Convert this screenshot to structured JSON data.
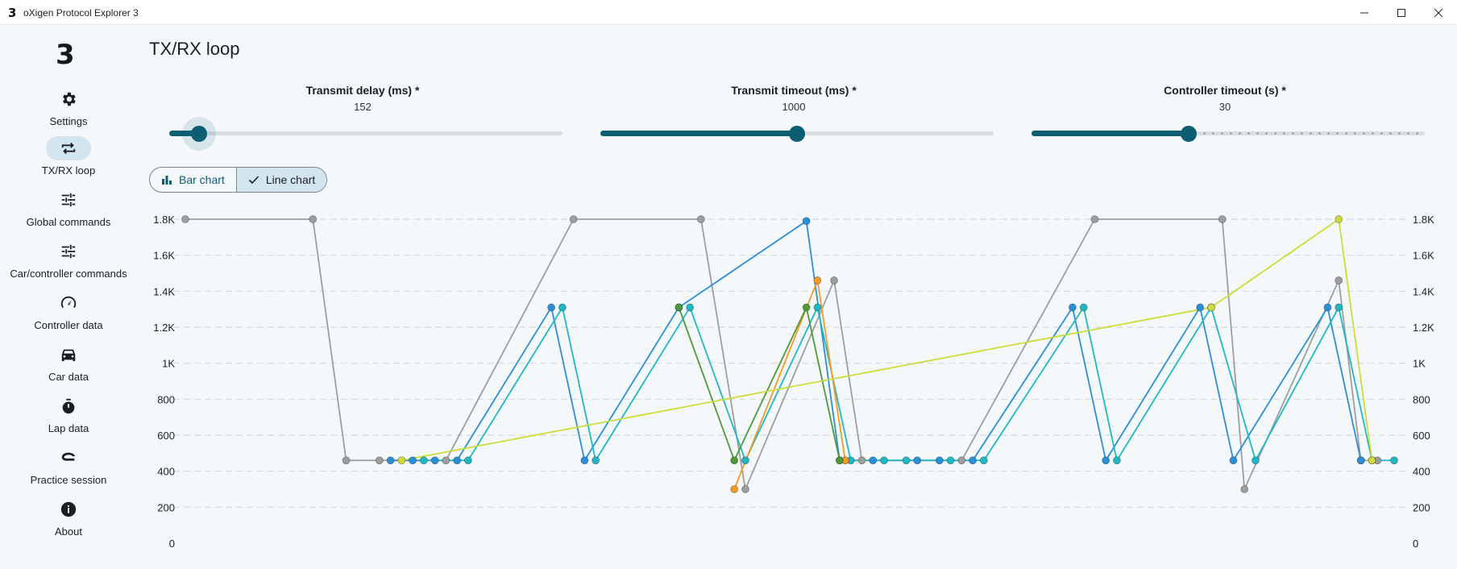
{
  "window": {
    "title": "oXigen Protocol Explorer 3",
    "icon_glyph": "3",
    "controls": [
      "minimize-icon",
      "maximize-icon",
      "close-icon"
    ]
  },
  "sidebar": {
    "logo": "3",
    "items": [
      {
        "label": "Settings",
        "icon": "gear-icon",
        "active": false
      },
      {
        "label": "TX/RX loop",
        "icon": "loop-arrows-icon",
        "active": true
      },
      {
        "label": "Global commands",
        "icon": "tune-icon",
        "active": false
      },
      {
        "label": "Car/controller commands",
        "icon": "tune-icon",
        "active": false
      },
      {
        "label": "Controller data",
        "icon": "speedometer-icon",
        "active": false
      },
      {
        "label": "Car data",
        "icon": "car-icon",
        "active": false
      },
      {
        "label": "Lap data",
        "icon": "stopwatch-icon",
        "active": false
      },
      {
        "label": "Practice session",
        "icon": "track-icon",
        "active": false
      },
      {
        "label": "About",
        "icon": "info-icon",
        "active": false
      }
    ]
  },
  "page": {
    "title": "TX/RX loop"
  },
  "sliders": [
    {
      "label": "Transmit delay (ms) *",
      "value": "152",
      "fraction": 0.075
    },
    {
      "label": "Transmit timeout (ms) *",
      "value": "1000",
      "fraction": 0.5
    },
    {
      "label": "Controller timeout (s) *",
      "value": "30",
      "fraction": 0.4
    }
  ],
  "view_toggle": {
    "options": [
      {
        "label": "Bar chart",
        "icon": "bar-chart-icon",
        "selected": false
      },
      {
        "label": "Line chart",
        "icon": "checkmark-icon",
        "selected": true
      }
    ]
  },
  "chart_data": {
    "type": "line",
    "ylim": [
      0,
      1800
    ],
    "y_ticks": [
      0,
      200,
      400,
      600,
      800,
      1000,
      1200,
      1400,
      1600,
      1800
    ],
    "y_tick_labels": [
      "0",
      "200",
      "400",
      "600",
      "800",
      "1K",
      "1.2K",
      "1.4K",
      "1.6K",
      "1.8K"
    ],
    "grid": "horizontal-dashed",
    "axes": "left-and-right",
    "xlim": [
      0,
      109
    ],
    "series": [
      {
        "color": "#9e9e9e",
        "points": [
          [
            0,
            1800
          ],
          [
            11.5,
            1800
          ],
          [
            14.5,
            460
          ],
          [
            17.5,
            460
          ],
          [
            23.5,
            460
          ],
          [
            35,
            1800
          ],
          [
            46.5,
            1800
          ],
          [
            50.5,
            300
          ],
          [
            58.5,
            1460
          ],
          [
            61,
            460
          ],
          [
            70,
            460
          ],
          [
            82,
            1800
          ],
          [
            93.5,
            1800
          ],
          [
            95.5,
            300
          ],
          [
            104,
            1460
          ],
          [
            106,
            460
          ],
          [
            107.5,
            460
          ]
        ]
      },
      {
        "color": "#2b8fd8",
        "points": [
          [
            18.5,
            460
          ],
          [
            20.5,
            460
          ],
          [
            22.5,
            460
          ],
          [
            24.5,
            460
          ],
          [
            33,
            1310
          ],
          [
            36,
            460
          ],
          [
            44.5,
            1310
          ],
          [
            56,
            1790
          ],
          [
            59,
            460
          ],
          [
            62,
            460
          ],
          [
            66,
            460
          ],
          [
            68,
            460
          ],
          [
            71,
            460
          ],
          [
            80,
            1310
          ],
          [
            83,
            460
          ],
          [
            91.5,
            1310
          ],
          [
            94.5,
            460
          ],
          [
            103,
            1310
          ],
          [
            106,
            460
          ]
        ]
      },
      {
        "color": "#20b7c5",
        "points": [
          [
            21.5,
            460
          ],
          [
            25.5,
            460
          ],
          [
            34,
            1310
          ],
          [
            37,
            460
          ],
          [
            45.5,
            1310
          ],
          [
            50.5,
            460
          ],
          [
            57,
            1310
          ],
          [
            60,
            460
          ],
          [
            63,
            460
          ],
          [
            65,
            460
          ],
          [
            69,
            460
          ],
          [
            72,
            460
          ],
          [
            81,
            1310
          ],
          [
            84,
            460
          ],
          [
            92.5,
            1310
          ],
          [
            96.5,
            460
          ],
          [
            104,
            1310
          ],
          [
            107,
            460
          ],
          [
            109,
            460
          ]
        ]
      },
      {
        "color": "#f59a23",
        "points": [
          [
            49.5,
            300
          ],
          [
            57,
            1460
          ],
          [
            59.5,
            460
          ]
        ]
      },
      {
        "color": "#4e9a3a",
        "points": [
          [
            44.5,
            1310
          ],
          [
            49.5,
            460
          ],
          [
            56,
            1310
          ],
          [
            59,
            460
          ]
        ]
      },
      {
        "color": "#cddc39",
        "points": [
          [
            19.5,
            460
          ],
          [
            92.5,
            1310
          ],
          [
            104,
            1800
          ],
          [
            107,
            460
          ]
        ]
      }
    ]
  }
}
